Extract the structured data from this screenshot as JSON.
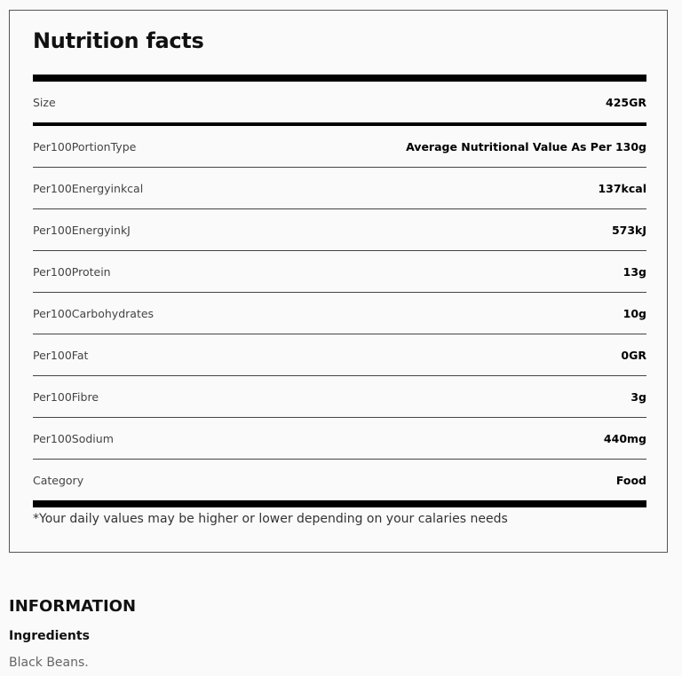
{
  "nutrition": {
    "title": "Nutrition facts",
    "size": {
      "label": "Size",
      "value": "425GR"
    },
    "rows": [
      {
        "label": "Per100PortionType",
        "value": "Average Nutritional Value As Per 130g"
      },
      {
        "label": "Per100Energyinkcal",
        "value": "137kcal"
      },
      {
        "label": "Per100EnergyinkJ",
        "value": "573kJ"
      },
      {
        "label": "Per100Protein",
        "value": "13g"
      },
      {
        "label": "Per100Carbohydrates",
        "value": "10g"
      },
      {
        "label": "Per100Fat",
        "value": "0GR"
      },
      {
        "label": "Per100Fibre",
        "value": "3g"
      },
      {
        "label": "Per100Sodium",
        "value": "440mg"
      },
      {
        "label": "Category",
        "value": "Food"
      }
    ],
    "footnote": "*Your daily values may be higher or lower depending on your calaries needs"
  },
  "information": {
    "heading": "INFORMATION",
    "ingredients_label": "Ingredients",
    "ingredients_value": "Black Beans."
  }
}
